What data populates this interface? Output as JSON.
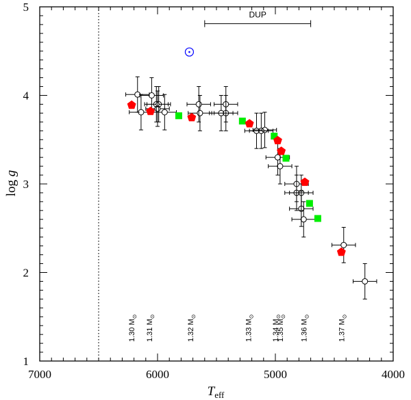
{
  "chart_data": {
    "type": "scatter",
    "xlabel": "T",
    "xlabel_sub": "eff",
    "ylabel_main": "log ",
    "ylabel_italic": "g",
    "xlim": [
      7000,
      4000
    ],
    "ylim": [
      1,
      5
    ],
    "xticks": [
      7000,
      6000,
      5000,
      4000
    ],
    "xtick_labels": [
      "7000",
      "6000",
      "5000",
      "4000"
    ],
    "yticks": [
      1,
      2,
      3,
      4,
      5
    ],
    "ytick_labels": [
      "1",
      "2",
      "3",
      "4",
      "5"
    ],
    "vertical_line_x": 6500,
    "dup": {
      "label": "DUP",
      "x_start": 5600,
      "x_end": 4700,
      "y": 4.81
    },
    "sun": {
      "x": 5730,
      "y": 4.49
    },
    "colors": {
      "observed": "#000000",
      "model_pentagon": "#ff0000",
      "model_square": "#00ee00",
      "sun": "#0000ff"
    },
    "observed": [
      {
        "x": 6170,
        "y": 4.01,
        "xerr": 100,
        "yerr": 0.2
      },
      {
        "x": 6050,
        "y": 4.0,
        "xerr": 100,
        "yerr": 0.2
      },
      {
        "x": 6010,
        "y": 3.9,
        "xerr": 100,
        "yerr": 0.2
      },
      {
        "x": 5990,
        "y": 3.9,
        "xerr": 100,
        "yerr": 0.2
      },
      {
        "x": 6140,
        "y": 3.81,
        "xerr": 100,
        "yerr": 0.2
      },
      {
        "x": 6000,
        "y": 3.85,
        "xerr": 100,
        "yerr": 0.2
      },
      {
        "x": 5940,
        "y": 3.81,
        "xerr": 100,
        "yerr": 0.2
      },
      {
        "x": 5650,
        "y": 3.9,
        "xerr": 100,
        "yerr": 0.2
      },
      {
        "x": 5640,
        "y": 3.8,
        "xerr": 100,
        "yerr": 0.2
      },
      {
        "x": 5420,
        "y": 3.9,
        "xerr": 100,
        "yerr": 0.2
      },
      {
        "x": 5460,
        "y": 3.8,
        "xerr": 100,
        "yerr": 0.2
      },
      {
        "x": 5420,
        "y": 3.8,
        "xerr": 100,
        "yerr": 0.2
      },
      {
        "x": 5160,
        "y": 3.6,
        "xerr": 100,
        "yerr": 0.2
      },
      {
        "x": 5120,
        "y": 3.6,
        "xerr": 100,
        "yerr": 0.2
      },
      {
        "x": 5090,
        "y": 3.61,
        "xerr": 100,
        "yerr": 0.2
      },
      {
        "x": 4980,
        "y": 3.3,
        "xerr": 100,
        "yerr": 0.2
      },
      {
        "x": 4960,
        "y": 3.2,
        "xerr": 100,
        "yerr": 0.2
      },
      {
        "x": 4820,
        "y": 3.0,
        "xerr": 100,
        "yerr": 0.2
      },
      {
        "x": 4820,
        "y": 2.9,
        "xerr": 100,
        "yerr": 0.2
      },
      {
        "x": 4780,
        "y": 2.9,
        "xerr": 100,
        "yerr": 0.2
      },
      {
        "x": 4780,
        "y": 2.72,
        "xerr": 100,
        "yerr": 0.2
      },
      {
        "x": 4760,
        "y": 2.6,
        "xerr": 100,
        "yerr": 0.2
      },
      {
        "x": 4420,
        "y": 2.31,
        "xerr": 100,
        "yerr": 0.2
      },
      {
        "x": 4240,
        "y": 1.9,
        "xerr": 100,
        "yerr": 0.2
      }
    ],
    "model_pentagons": [
      {
        "x": 6220,
        "y": 3.89
      },
      {
        "x": 6060,
        "y": 3.82
      },
      {
        "x": 5710,
        "y": 3.75
      },
      {
        "x": 5220,
        "y": 3.68
      },
      {
        "x": 4980,
        "y": 3.49
      },
      {
        "x": 4950,
        "y": 3.37
      },
      {
        "x": 4750,
        "y": 3.02
      },
      {
        "x": 4440,
        "y": 2.23
      }
    ],
    "model_squares": [
      {
        "x": 5820,
        "y": 3.77
      },
      {
        "x": 5280,
        "y": 3.71
      },
      {
        "x": 5010,
        "y": 3.54
      },
      {
        "x": 4910,
        "y": 3.29
      },
      {
        "x": 4710,
        "y": 2.78
      },
      {
        "x": 4640,
        "y": 2.61
      }
    ],
    "mass_labels": [
      {
        "x": 6220,
        "value": "1.30",
        "unit": "M",
        "symbol": "⊙"
      },
      {
        "x": 6070,
        "value": "1.31",
        "unit": "M",
        "symbol": "⊙"
      },
      {
        "x": 5720,
        "value": "1.32",
        "unit": "M",
        "symbol": "⊙"
      },
      {
        "x": 5230,
        "value": "1.33",
        "unit": "M",
        "symbol": "⊙"
      },
      {
        "x": 5000,
        "value": "1.34",
        "unit": "M",
        "symbol": "⊙"
      },
      {
        "x": 4960,
        "value": "1.35",
        "unit": "M",
        "symbol": "⊙"
      },
      {
        "x": 4760,
        "value": "1.36",
        "unit": "M",
        "symbol": "⊙"
      },
      {
        "x": 4440,
        "value": "1.37",
        "unit": "M",
        "symbol": "⊙"
      }
    ]
  }
}
